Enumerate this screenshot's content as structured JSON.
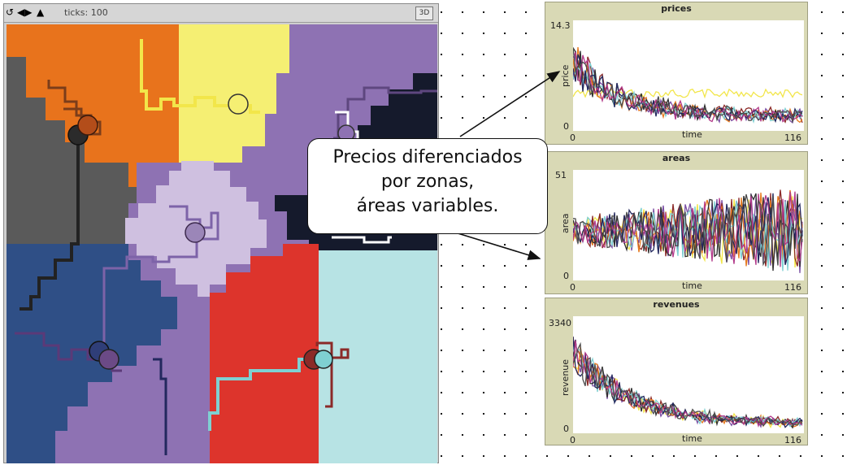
{
  "view": {
    "ticks_label": "ticks: 100",
    "btn_3d": "3D",
    "icons": [
      "rotate-icon",
      "left-right-arrows-icon",
      "up-down-arrows-icon"
    ]
  },
  "world": {
    "agent_colors": [
      "#f5ef73",
      "#e8731c",
      "#2e2e2e",
      "#9b86b8",
      "#b7e3e4",
      "#e0342e",
      "#8b2a28",
      "#2f3e78",
      "#3e2b4f"
    ]
  },
  "plots": [
    {
      "id": "prices",
      "title": "prices",
      "ylabel": "price",
      "xlabel": "time",
      "ymin": "0",
      "ymax": "14.3",
      "xmin": "0",
      "xmax": "116"
    },
    {
      "id": "areas",
      "title": "areas",
      "ylabel": "area",
      "xlabel": "time",
      "ymin": "0",
      "ymax": "51",
      "xmin": "0",
      "xmax": "116"
    },
    {
      "id": "revenues",
      "title": "revenues",
      "ylabel": "revenue",
      "xlabel": "time",
      "ymin": "0",
      "ymax": "3340",
      "xmin": "0",
      "xmax": "116"
    }
  ],
  "annotation": {
    "line1": "Precios diferenciados",
    "line2": "por zonas,",
    "line3": "áreas variables."
  },
  "series_colors": [
    "#f2e64a",
    "#7a4ea3",
    "#8b2a28",
    "#e67a1f",
    "#2e2e2e",
    "#7fd0d2",
    "#23285e",
    "#b23a8a",
    "#4d4d4d"
  ]
}
